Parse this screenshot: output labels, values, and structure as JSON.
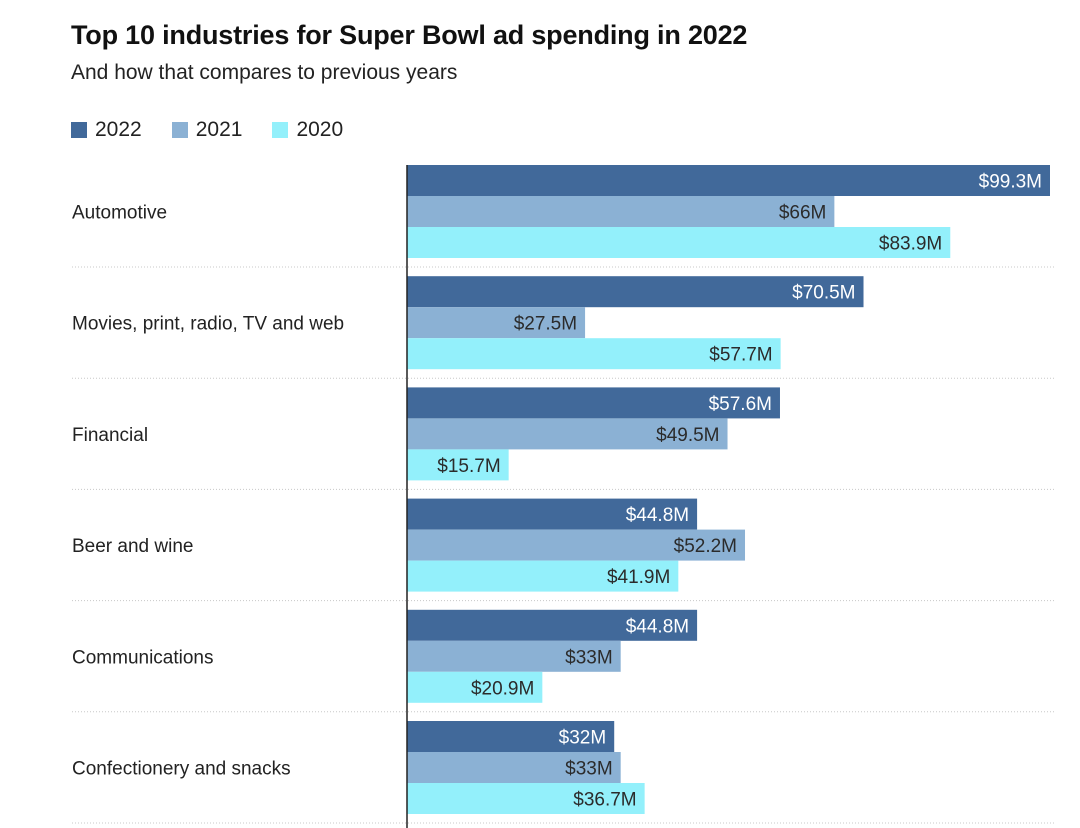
{
  "chart_data": {
    "type": "bar",
    "orientation": "horizontal",
    "title": "Top 10 industries for Super Bowl ad spending in 2022",
    "subtitle": "And how that compares to previous years",
    "xlabel": "",
    "ylabel": "",
    "unit_prefix": "$",
    "unit_suffix": "M",
    "xlim": [
      0,
      100
    ],
    "grid": false,
    "legend_position": "top-left",
    "categories": [
      "Automotive",
      "Movies, print, radio, TV and web",
      "Financial",
      "Beer and wine",
      "Communications",
      "Confectionery and snacks"
    ],
    "series": [
      {
        "name": "2022",
        "color": "#41699a",
        "label_color": "#ffffff",
        "values": [
          99.3,
          70.5,
          57.6,
          44.8,
          44.8,
          32
        ],
        "labels": [
          "$99.3M",
          "$70.5M",
          "$57.6M",
          "$44.8M",
          "$44.8M",
          "$32M"
        ]
      },
      {
        "name": "2021",
        "color": "#8bb1d4",
        "label_color": "#2b2b2b",
        "values": [
          66,
          27.5,
          49.5,
          52.2,
          33,
          33
        ],
        "labels": [
          "$66M",
          "$27.5M",
          "$49.5M",
          "$52.2M",
          "$33M",
          "$33M"
        ]
      },
      {
        "name": "2020",
        "color": "#93f0fb",
        "label_color": "#2b2b2b",
        "values": [
          83.9,
          57.7,
          15.7,
          41.9,
          20.9,
          36.7
        ],
        "labels": [
          "$83.9M",
          "$57.7M",
          "$15.7M",
          "$41.9M",
          "$20.9M",
          "$36.7M"
        ]
      }
    ]
  },
  "legend": [
    {
      "label": "2022",
      "color": "#41699a"
    },
    {
      "label": "2021",
      "color": "#8bb1d4"
    },
    {
      "label": "2020",
      "color": "#93f0fb"
    }
  ]
}
